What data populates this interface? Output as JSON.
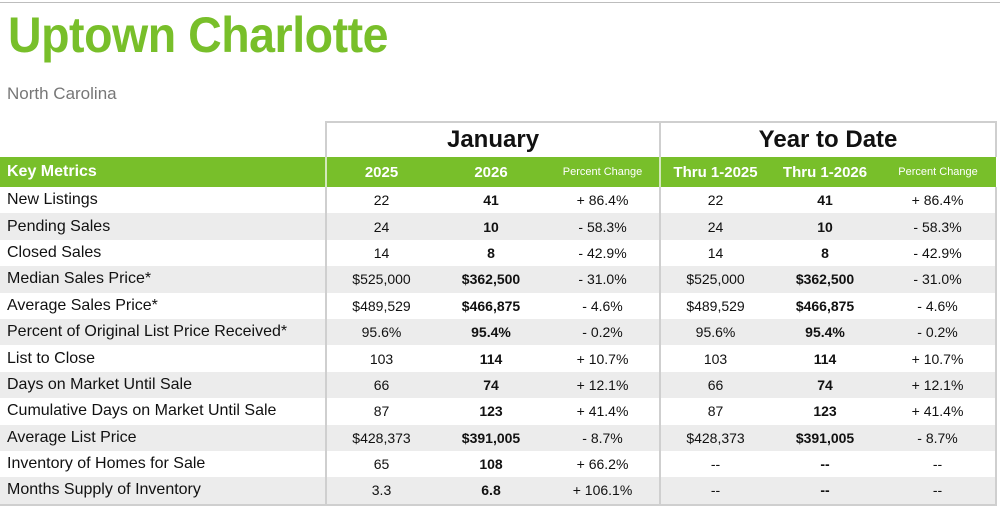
{
  "header": {
    "title": "Uptown Charlotte",
    "subtitle": "North Carolina"
  },
  "table": {
    "period_month": "January",
    "period_ytd": "Year to Date",
    "columns": {
      "key_metrics": "Key Metrics",
      "year1": "2025",
      "year2": "2026",
      "pct_change_month": "Percent Change",
      "thru1": "Thru 1-2025",
      "thru2": "Thru 1-2026",
      "pct_change_ytd": "Percent Change"
    },
    "rows": [
      {
        "label": "New Listings",
        "v2025": "22",
        "v2026": "41",
        "pct": "+ 86.4%",
        "ytd2025": "22",
        "ytd2026": "41",
        "ytd_pct": "+ 86.4%"
      },
      {
        "label": "Pending Sales",
        "v2025": "24",
        "v2026": "10",
        "pct": "- 58.3%",
        "ytd2025": "24",
        "ytd2026": "10",
        "ytd_pct": "- 58.3%"
      },
      {
        "label": "Closed Sales",
        "v2025": "14",
        "v2026": "8",
        "pct": "- 42.9%",
        "ytd2025": "14",
        "ytd2026": "8",
        "ytd_pct": "- 42.9%"
      },
      {
        "label": "Median Sales Price*",
        "v2025": "$525,000",
        "v2026": "$362,500",
        "pct": "- 31.0%",
        "ytd2025": "$525,000",
        "ytd2026": "$362,500",
        "ytd_pct": "- 31.0%"
      },
      {
        "label": "Average Sales Price*",
        "v2025": "$489,529",
        "v2026": "$466,875",
        "pct": "- 4.6%",
        "ytd2025": "$489,529",
        "ytd2026": "$466,875",
        "ytd_pct": "- 4.6%"
      },
      {
        "label": "Percent of Original List Price Received*",
        "v2025": "95.6%",
        "v2026": "95.4%",
        "pct": "- 0.2%",
        "ytd2025": "95.6%",
        "ytd2026": "95.4%",
        "ytd_pct": "- 0.2%"
      },
      {
        "label": "List to Close",
        "v2025": "103",
        "v2026": "114",
        "pct": "+ 10.7%",
        "ytd2025": "103",
        "ytd2026": "114",
        "ytd_pct": "+ 10.7%"
      },
      {
        "label": "Days on Market Until Sale",
        "v2025": "66",
        "v2026": "74",
        "pct": "+ 12.1%",
        "ytd2025": "66",
        "ytd2026": "74",
        "ytd_pct": "+ 12.1%"
      },
      {
        "label": "Cumulative Days on Market Until Sale",
        "v2025": "87",
        "v2026": "123",
        "pct": "+ 41.4%",
        "ytd2025": "87",
        "ytd2026": "123",
        "ytd_pct": "+ 41.4%"
      },
      {
        "label": "Average List Price",
        "v2025": "$428,373",
        "v2026": "$391,005",
        "pct": "- 8.7%",
        "ytd2025": "$428,373",
        "ytd2026": "$391,005",
        "ytd_pct": "- 8.7%"
      },
      {
        "label": "Inventory of Homes for Sale",
        "v2025": "65",
        "v2026": "108",
        "pct": "+ 66.2%",
        "ytd2025": "--",
        "ytd2026": "--",
        "ytd_pct": "--"
      },
      {
        "label": "Months Supply of Inventory",
        "v2025": "3.3",
        "v2026": "6.8",
        "pct": "+ 106.1%",
        "ytd2025": "--",
        "ytd2026": "--",
        "ytd_pct": "--"
      }
    ]
  },
  "colors": {
    "accent_green": "#78bf2a",
    "row_shade": "#ececec",
    "subtitle_gray": "#777777"
  }
}
